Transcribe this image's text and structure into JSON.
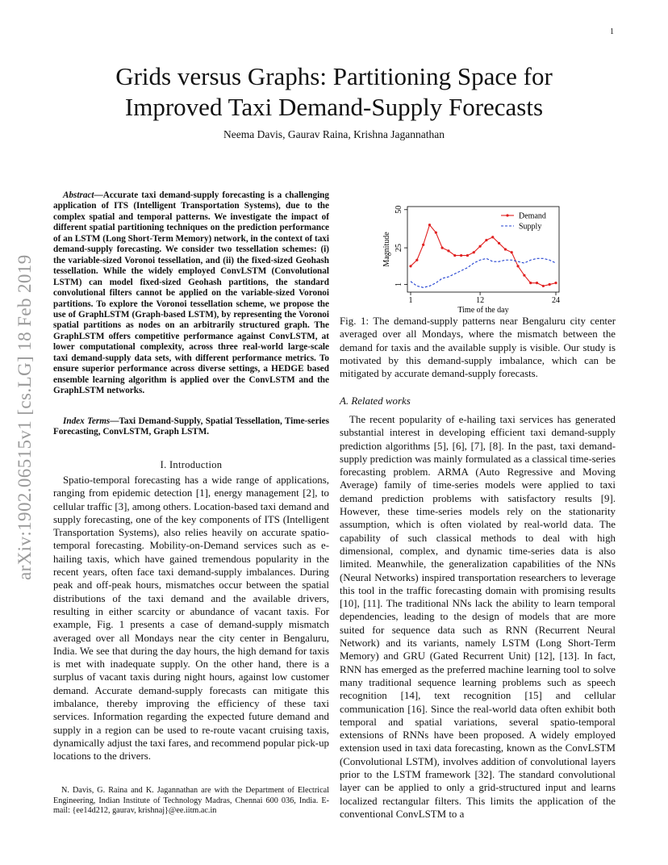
{
  "page_number": "1",
  "title_lines": [
    "Grids versus Graphs: Partitioning Space for",
    "Improved Taxi Demand-Supply Forecasts"
  ],
  "authors": "Neema Davis, Gaurav Raina, Krishna Jagannathan",
  "arxiv_stamp": "arXiv:1902.06515v1  [cs.LG]  18 Feb 2019",
  "abstract_label": "Abstract",
  "abstract_text": "—Accurate taxi demand-supply forecasting is a challenging application of ITS (Intelligent Transportation Systems), due to the complex spatial and temporal patterns. We investigate the impact of different spatial partitioning techniques on the prediction performance of an LSTM (Long Short-Term Memory) network, in the context of taxi demand-supply forecasting. We consider two tessellation schemes: (i) the variable-sized Voronoi tessellation, and (ii) the fixed-sized Geohash tessellation. While the widely employed ConvLSTM (Convolutional LSTM) can model fixed-sized Geohash partitions, the standard convolutional filters cannot be applied on the variable-sized Voronoi partitions. To explore the Voronoi tessellation scheme, we propose the use of GraphLSTM (Graph-based LSTM), by representing the Voronoi spatial partitions as nodes on an arbitrarily structured graph. The GraphLSTM offers competitive performance against ConvLSTM, at lower computational complexity, across three real-world large-scale taxi demand-supply data sets, with different performance metrics. To ensure superior performance across diverse settings, a HEDGE based ensemble learning algorithm is applied over the ConvLSTM and the GraphLSTM networks.",
  "index_terms_label": "Index Terms",
  "index_terms_text": "—Taxi Demand-Supply, Spatial Tessellation, Time-series Forecasting, ConvLSTM, Graph LSTM.",
  "section_heading": "I. Introduction",
  "intro_text": "Spatio-temporal forecasting has a wide range of applications, ranging from epidemic detection [1], energy management [2], to cellular traffic [3], among others. Location-based taxi demand and supply forecasting, one of the key components of ITS (Intelligent Transportation Systems), also relies heavily on accurate spatio-temporal forecasting. Mobility-on-Demand services such as e-hailing taxis, which have gained tremendous popularity in the recent years, often face taxi demand-supply imbalances. During peak and off-peak hours, mismatches occur between the spatial distributions of the taxi demand and the available drivers, resulting in either scarcity or abundance of vacant taxis. For example, Fig. 1 presents a case of demand-supply mismatch averaged over all Mondays near the city center in Bengaluru, India. We see that during the day hours, the high demand for taxis is met with inadequate supply. On the other hand, there is a surplus of vacant taxis during night hours, against low customer demand. Accurate demand-supply forecasts can mitigate this imbalance, thereby improving the efficiency of these taxi services. Information regarding the expected future demand and supply in a region can be used to re-route vacant cruising taxis, dynamically adjust the taxi fares, and recommend popular pick-up locations to the drivers.",
  "footnote": "N. Davis, G. Raina and K. Jagannathan are with the Department of Electrical Engineering, Indian Institute of Technology Madras, Chennai 600 036, India. E-mail: {ee14d212, gaurav, krishnaj}@ee.iitm.ac.in",
  "caption": "Fig. 1: The demand-supply patterns near Bengaluru city center averaged over all Mondays, where the mismatch between the demand for taxis and the available supply is visible. Our study is motivated by this demand-supply imbalance, which can be mitigated by accurate demand-supply forecasts.",
  "subsection_heading": "A. Related works",
  "related_text": "The recent popularity of e-hailing taxi services has generated substantial interest in developing efficient taxi demand-supply prediction algorithms [5], [6], [7], [8]. In the past, taxi demand-supply prediction was mainly formulated as a classical time-series forecasting problem. ARMA (Auto Regressive and Moving Average) family of time-series models were applied to taxi demand prediction problems with satisfactory results [9]. However, these time-series models rely on the stationarity assumption, which is often violated by real-world data. The capability of such classical methods to deal with high dimensional, complex, and dynamic time-series data is also limited. Meanwhile, the generalization capabilities of the NNs (Neural Networks) inspired transportation researchers to leverage this tool in the traffic forecasting domain with promising results [10], [11]. The traditional NNs lack the ability to learn temporal dependencies, leading to the design of models that are more suited for sequence data such as RNN (Recurrent Neural Network) and its variants, namely LSTM (Long Short-Term Memory) and GRU (Gated Recurrent Unit) [12], [13]. In fact, RNN has emerged as the preferred machine learning tool to solve many traditional sequence learning problems such as speech recognition [14], text recognition [15] and cellular communication [16]. Since the real-world data often exhibit both temporal and spatial variations, several spatio-temporal extensions of RNNs have been proposed. A widely employed extension used in taxi data forecasting, known as the ConvLSTM (Convolutional LSTM), involves addition of convolutional layers prior to the LSTM framework [32]. The standard convolutional layer can be applied to only a grid-structured input and learns localized rectangular filters. This limits the application of the conventional ConvLSTM to a",
  "chart_data": {
    "type": "line",
    "xlabel": "Time of the day",
    "ylabel": "Magnitude",
    "xticks": [
      "1",
      "12",
      "24"
    ],
    "yticks": [
      "1",
      "25",
      "50"
    ],
    "xlim": [
      1,
      24
    ],
    "ylim": [
      -4,
      52
    ],
    "legend_position": "top-right",
    "x": [
      1,
      2,
      3,
      4,
      5,
      6,
      7,
      8,
      9,
      10,
      11,
      12,
      13,
      14,
      15,
      16,
      17,
      18,
      19,
      20,
      21,
      22,
      23,
      24
    ],
    "series": [
      {
        "name": "Demand",
        "color": "#e02020",
        "marker": "dot",
        "dash": "solid",
        "values": [
          13,
          17,
          27,
          40,
          35,
          25,
          23,
          20,
          20,
          20,
          22,
          26,
          30,
          32,
          28,
          24,
          22,
          13,
          7,
          2,
          2,
          0,
          1,
          2
        ]
      },
      {
        "name": "Supply",
        "color": "#2040d0",
        "marker": "none",
        "dash": "dashed",
        "values": [
          3,
          0,
          -1,
          0,
          2,
          5,
          6,
          8,
          10,
          12,
          15,
          17,
          18,
          16,
          16,
          17,
          17,
          16,
          15,
          17,
          18,
          18,
          17,
          15
        ]
      }
    ]
  }
}
